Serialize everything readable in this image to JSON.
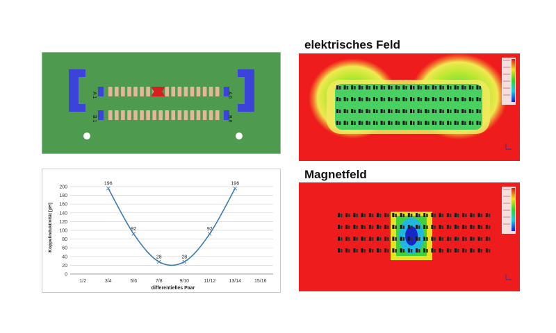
{
  "pcb": {
    "row_label_a_left": "A 1",
    "row_label_b_left": "B 1",
    "row_label_a_right": "A 6",
    "row_label_b_right": "B 6",
    "colors": {
      "board": "#4e9a4e",
      "pad": "#e2b79a",
      "highlight": "#d62020",
      "end_block": "#3b43d9",
      "hole": "#ffffff"
    }
  },
  "chart_data": {
    "type": "line",
    "categories": [
      "1/2",
      "3/4",
      "5/6",
      "7/8",
      "9/10",
      "11/12",
      "13/14",
      "15/16"
    ],
    "points": [
      {
        "x": "3/4",
        "y": 196
      },
      {
        "x": "5/6",
        "y": 92
      },
      {
        "x": "7/8",
        "y": 28
      },
      {
        "x": "9/10",
        "y": 28
      },
      {
        "x": "11/12",
        "y": 92
      },
      {
        "x": "13/14",
        "y": 196
      }
    ],
    "data_labels": [
      "196",
      "92",
      "28",
      "28",
      "92",
      "196"
    ],
    "y_ticks": [
      "0",
      "20",
      "40",
      "60",
      "80",
      "100",
      "120",
      "140",
      "160",
      "180",
      "200"
    ],
    "ylim": [
      0,
      200
    ],
    "xlabel": "differentielles Paar",
    "ylabel": "Koppelinduktivität [pH]",
    "grid": true,
    "line_color": "#3c7ab0"
  },
  "fields": {
    "electric_title": "elektrisches Feld",
    "magnetic_title": "Magnetfeld",
    "colors": {
      "background": "#ee1c1c",
      "legend": "#f0d0d0"
    }
  }
}
